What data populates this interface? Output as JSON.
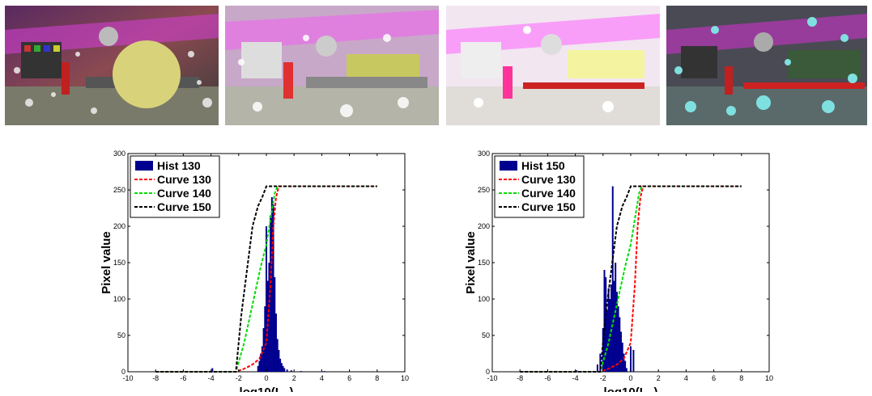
{
  "images": [
    {
      "name": "scene-tonemapped-1",
      "description_icon": "disco-room-scene-large-yellow-ball"
    },
    {
      "name": "scene-tonemapped-2",
      "description_icon": "disco-room-scene-soft"
    },
    {
      "name": "scene-tonemapped-3",
      "description_icon": "disco-room-scene-overexposed"
    },
    {
      "name": "scene-tonemapped-4",
      "description_icon": "disco-room-scene-cyan-bubbles"
    }
  ],
  "chart_data": [
    {
      "type": "bar+line",
      "title": "",
      "xlabel": "log10(L",
      "xlabel_sub": "w",
      "xlabel_close": ")",
      "ylabel": "Pixel value",
      "xlim": [
        -10,
        10
      ],
      "ylim": [
        0,
        300
      ],
      "xticks": [
        "-10",
        "-8",
        "-6",
        "-4",
        "-2",
        "0",
        "2",
        "4",
        "6",
        "8",
        "10"
      ],
      "yticks": [
        "0",
        "50",
        "100",
        "150",
        "200",
        "250",
        "300"
      ],
      "legend": [
        "Hist 130",
        "Curve 130",
        "Curve 140",
        "Curve 150"
      ],
      "legend_position": "top-left",
      "colors": {
        "hist": "#00008f",
        "curve130": "#ff0000",
        "curve140": "#00dd00",
        "curve150": "#000000"
      },
      "histogram": {
        "x": [
          -3.9,
          -0.6,
          -0.5,
          -0.4,
          -0.3,
          -0.2,
          -0.1,
          0.0,
          0.1,
          0.2,
          0.3,
          0.4,
          0.5,
          0.6,
          0.7,
          0.8,
          0.9,
          1.0,
          1.1,
          1.2,
          1.3,
          1.5,
          1.8,
          2.5,
          4.2
        ],
        "y": [
          5,
          8,
          15,
          25,
          35,
          60,
          90,
          200,
          125,
          150,
          215,
          240,
          230,
          130,
          80,
          45,
          30,
          18,
          12,
          8,
          5,
          3,
          2,
          1,
          1
        ]
      },
      "series": [
        {
          "name": "Curve 130",
          "x": [
            -8,
            -2.2,
            -1.5,
            -1.0,
            -0.5,
            0.0,
            0.3,
            0.5,
            0.7,
            0.9,
            1.0,
            8
          ],
          "y": [
            0,
            0,
            5,
            10,
            18,
            40,
            120,
            200,
            240,
            255,
            255,
            255
          ]
        },
        {
          "name": "Curve 140",
          "x": [
            -8,
            -2.2,
            -1.6,
            -1.2,
            -0.8,
            -0.4,
            0.0,
            0.3,
            0.6,
            0.8,
            8
          ],
          "y": [
            0,
            0,
            40,
            75,
            110,
            145,
            175,
            210,
            245,
            255,
            255
          ]
        },
        {
          "name": "Curve 150",
          "x": [
            -8,
            -2.2,
            -1.8,
            -1.4,
            -1.0,
            -0.6,
            -0.3,
            0.0,
            8
          ],
          "y": [
            0,
            0,
            80,
            140,
            200,
            228,
            240,
            255,
            255
          ]
        }
      ]
    },
    {
      "type": "bar+line",
      "title": "",
      "xlabel": "log10(L",
      "xlabel_sub": "w",
      "xlabel_close": ")",
      "ylabel": "Pixel value",
      "xlim": [
        -10,
        10
      ],
      "ylim": [
        0,
        300
      ],
      "xticks": [
        "-10",
        "-8",
        "-6",
        "-4",
        "-2",
        "0",
        "2",
        "4",
        "6",
        "8",
        "10"
      ],
      "yticks": [
        "0",
        "50",
        "100",
        "150",
        "200",
        "250",
        "300"
      ],
      "legend": [
        "Hist 150",
        "Curve 130",
        "Curve 140",
        "Curve 150"
      ],
      "legend_position": "top-left",
      "colors": {
        "hist": "#00008f",
        "curve130": "#ff0000",
        "curve140": "#00dd00",
        "curve150": "#000000"
      },
      "histogram": {
        "x": [
          -3.9,
          -2.4,
          -2.2,
          -2.0,
          -1.9,
          -1.8,
          -1.7,
          -1.6,
          -1.5,
          -1.4,
          -1.3,
          -1.2,
          -1.1,
          -1.0,
          -0.9,
          -0.8,
          -0.7,
          -0.6,
          -0.5,
          -0.4,
          -0.3,
          0.0,
          0.2
        ],
        "y": [
          2,
          10,
          25,
          60,
          140,
          130,
          85,
          115,
          100,
          120,
          255,
          125,
          150,
          110,
          90,
          75,
          55,
          40,
          25,
          15,
          5,
          35,
          30
        ]
      },
      "series": [
        {
          "name": "Curve 130",
          "x": [
            -8,
            -2.2,
            -1.5,
            -1.0,
            -0.5,
            0.0,
            0.3,
            0.5,
            0.7,
            0.9,
            1.0,
            8
          ],
          "y": [
            0,
            0,
            5,
            10,
            18,
            40,
            120,
            200,
            240,
            255,
            255,
            255
          ]
        },
        {
          "name": "Curve 140",
          "x": [
            -8,
            -2.2,
            -1.6,
            -1.2,
            -0.8,
            -0.4,
            0.0,
            0.3,
            0.6,
            0.8,
            8
          ],
          "y": [
            0,
            0,
            40,
            75,
            110,
            145,
            175,
            210,
            245,
            255,
            255
          ]
        },
        {
          "name": "Curve 150",
          "x": [
            -8,
            -2.2,
            -1.8,
            -1.4,
            -1.0,
            -0.6,
            -0.3,
            0.0,
            8
          ],
          "y": [
            0,
            0,
            80,
            140,
            200,
            228,
            240,
            255,
            255
          ]
        }
      ]
    }
  ]
}
